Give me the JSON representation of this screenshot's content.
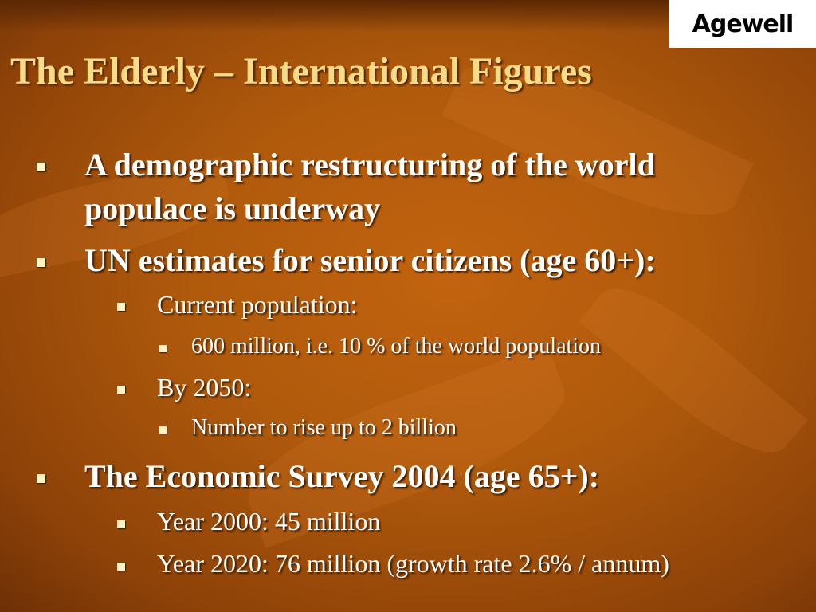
{
  "logo": {
    "text": "Agewell"
  },
  "title": "The Elderly – International  Figures",
  "bullets": [
    {
      "level": 1,
      "text": "A demographic restructuring of the world"
    },
    {
      "level": 1,
      "text": "populace is underway"
    },
    {
      "level": 1,
      "text": "UN estimates for senior citizens (age 60+):"
    },
    {
      "level": 2,
      "text": "Current population:"
    },
    {
      "level": 3,
      "text": "600 million, i.e. 10 % of the world population"
    },
    {
      "level": 2,
      "text": "By 2050:"
    },
    {
      "level": 3,
      "text": "Number to rise up to 2 billion"
    },
    {
      "level": 1,
      "text": "The Economic Survey 2004 (age 65+):"
    },
    {
      "level": 2,
      "text": "Year 2000: 45 million"
    },
    {
      "level": 2,
      "text": "Year 2020: 76 million (growth rate 2.6% / annum)"
    }
  ],
  "colors": {
    "background": "#b05a0c",
    "title": "#f6dc86",
    "bullet": "#fbf3c4",
    "text": "#ffffff"
  }
}
